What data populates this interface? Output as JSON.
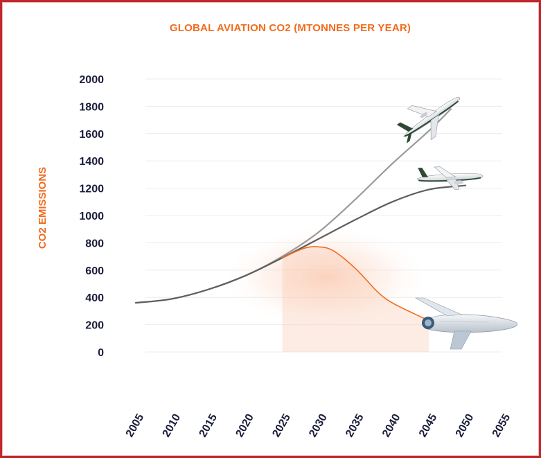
{
  "chart_data": {
    "type": "line",
    "title": "GLOBAL AVIATION CO2 (MTONNES PER YEAR)",
    "xlabel": "",
    "ylabel": "CO2 EMISSIONS",
    "xlim": [
      2005,
      2055
    ],
    "ylim": [
      0,
      2000
    ],
    "grid": true,
    "x_ticks": [
      "2005",
      "2010",
      "2015",
      "2020",
      "2025",
      "2030",
      "2035",
      "2040",
      "2045",
      "2050",
      "2055"
    ],
    "y_ticks": [
      "0",
      "200",
      "400",
      "600",
      "800",
      "1000",
      "1200",
      "1400",
      "1600",
      "1800",
      "2000"
    ],
    "series": [
      {
        "color": "#9a9a9a",
        "x": [
          2005,
          2010,
          2015,
          2020,
          2025,
          2030,
          2035,
          2040,
          2045,
          2048
        ],
        "y": [
          360,
          390,
          460,
          560,
          700,
          880,
          1120,
          1380,
          1620,
          1780
        ]
      },
      {
        "color": "#5e5e5e",
        "x": [
          2005,
          2010,
          2015,
          2020,
          2025,
          2030,
          2035,
          2040,
          2045,
          2050
        ],
        "y": [
          360,
          390,
          460,
          560,
          690,
          830,
          970,
          1100,
          1190,
          1220
        ]
      },
      {
        "color": "#f26b1d",
        "x": [
          2025,
          2028,
          2030,
          2032,
          2035,
          2038,
          2040,
          2043,
          2045
        ],
        "y": [
          690,
          760,
          770,
          740,
          610,
          440,
          360,
          280,
          230
        ]
      }
    ],
    "shading": {
      "color": "#f9c9b0",
      "under_series": 3
    },
    "illustrations": [
      "airliner-icon",
      "narrowbody-jet-icon",
      "blended-wing-aircraft-icon"
    ]
  }
}
